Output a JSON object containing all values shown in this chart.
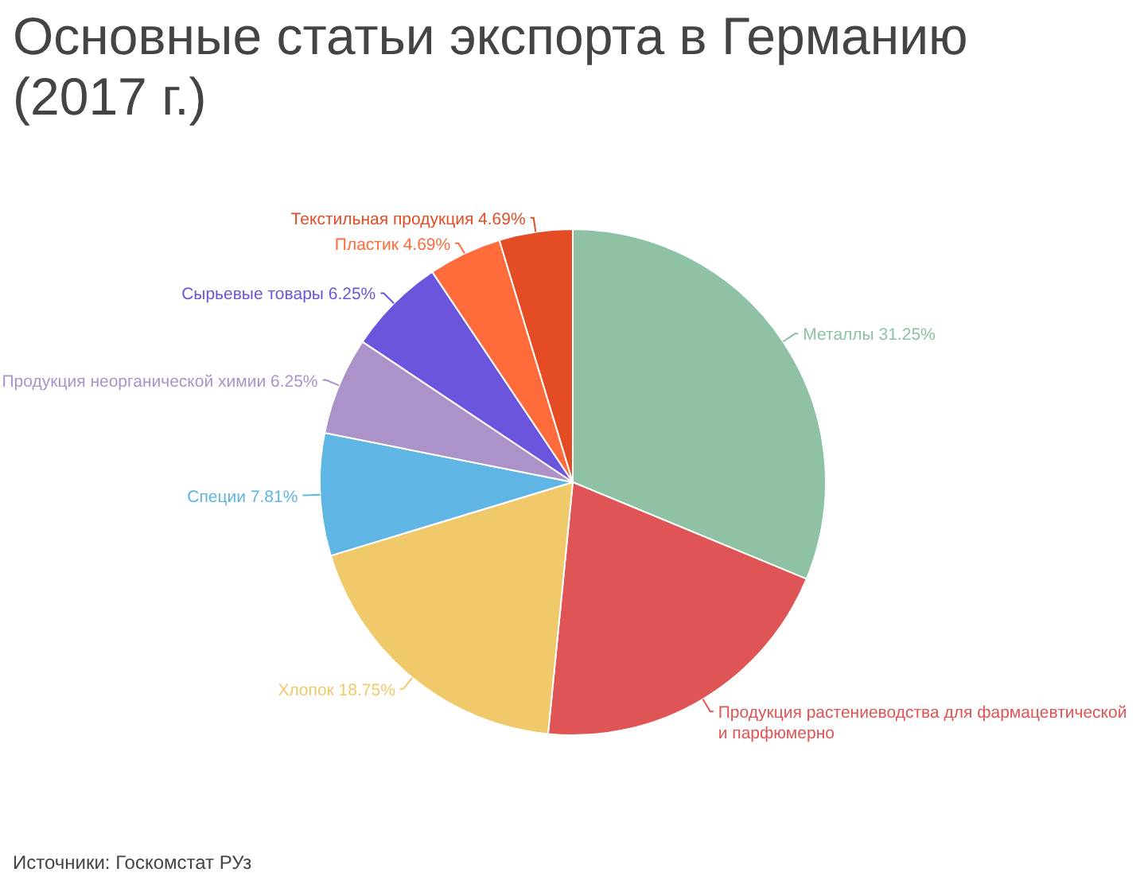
{
  "chart_data": {
    "type": "pie",
    "title": "Основные статьи экспорта в Германию (2017 г.)",
    "categories": [
      "Металлы",
      "Продукция растениеводства для фармацевтической и парфюмерно",
      "Хлопок",
      "Специи",
      "Продукция неорганической химии",
      "Сырьевые товары",
      "Пластик",
      "Текстильная продукция"
    ],
    "values": [
      31.25,
      20.31,
      18.75,
      7.81,
      6.25,
      6.25,
      4.69,
      4.69
    ],
    "value_labels": [
      "31.25%",
      null,
      "18.75%",
      "7.81%",
      "6.25%",
      "6.25%",
      "4.69%",
      "4.69%"
    ],
    "colors": [
      "#8fc1a5",
      "#df5454",
      "#f0c96a",
      "#5fb6e4",
      "#ab93c9",
      "#6b55dd",
      "#ff6b3b",
      "#e44c25"
    ],
    "annotations": [
      "Источники: Госкомстат РУз"
    ]
  }
}
